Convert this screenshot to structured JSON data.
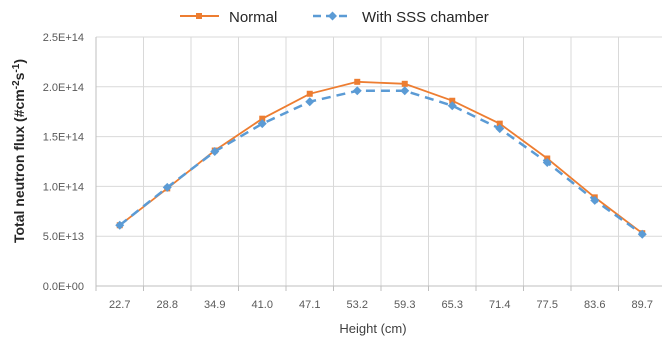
{
  "chart_data": {
    "type": "line",
    "title": "",
    "xlabel": "Height (cm)",
    "ylabel": "Total neutron flux (#cm",
    "ylabel_sup1": "-2",
    "ylabel_mid": "s",
    "ylabel_sup2": "-1",
    "ylabel_end": ")",
    "categories": [
      "22.7",
      "28.8",
      "34.9",
      "41.0",
      "47.1",
      "53.2",
      "59.3",
      "65.3",
      "71.4",
      "77.5",
      "83.6",
      "89.7"
    ],
    "ylim": [
      0,
      250000000000000.0
    ],
    "yticks": [
      0,
      50000000000000.0,
      100000000000000.0,
      150000000000000.0,
      200000000000000.0,
      250000000000000.0
    ],
    "ytick_labels": [
      "0.0E+00",
      "5.0E+13",
      "1.0E+14",
      "1.5E+14",
      "2.0E+14",
      "2.5E+14"
    ],
    "grid": true,
    "legend_position": "top",
    "series": [
      {
        "name": "Normal",
        "color": "#ED7D31",
        "marker": "square",
        "line": "solid",
        "values": [
          61000000000000.0,
          98000000000000.0,
          136000000000000.0,
          168000000000000.0,
          193000000000000.0,
          205000000000000.0,
          203000000000000.0,
          186000000000000.0,
          163000000000000.0,
          128000000000000.0,
          89000000000000.0,
          53000000000000.0
        ]
      },
      {
        "name": "With SSS chamber",
        "color": "#5B9BD5",
        "marker": "diamond",
        "line": "dashed",
        "values": [
          61000000000000.0,
          99000000000000.0,
          135000000000000.0,
          163000000000000.0,
          185000000000000.0,
          196000000000000.0,
          196000000000000.0,
          181000000000000.0,
          158000000000000.0,
          124000000000000.0,
          86000000000000.0,
          52000000000000.0
        ]
      }
    ]
  }
}
